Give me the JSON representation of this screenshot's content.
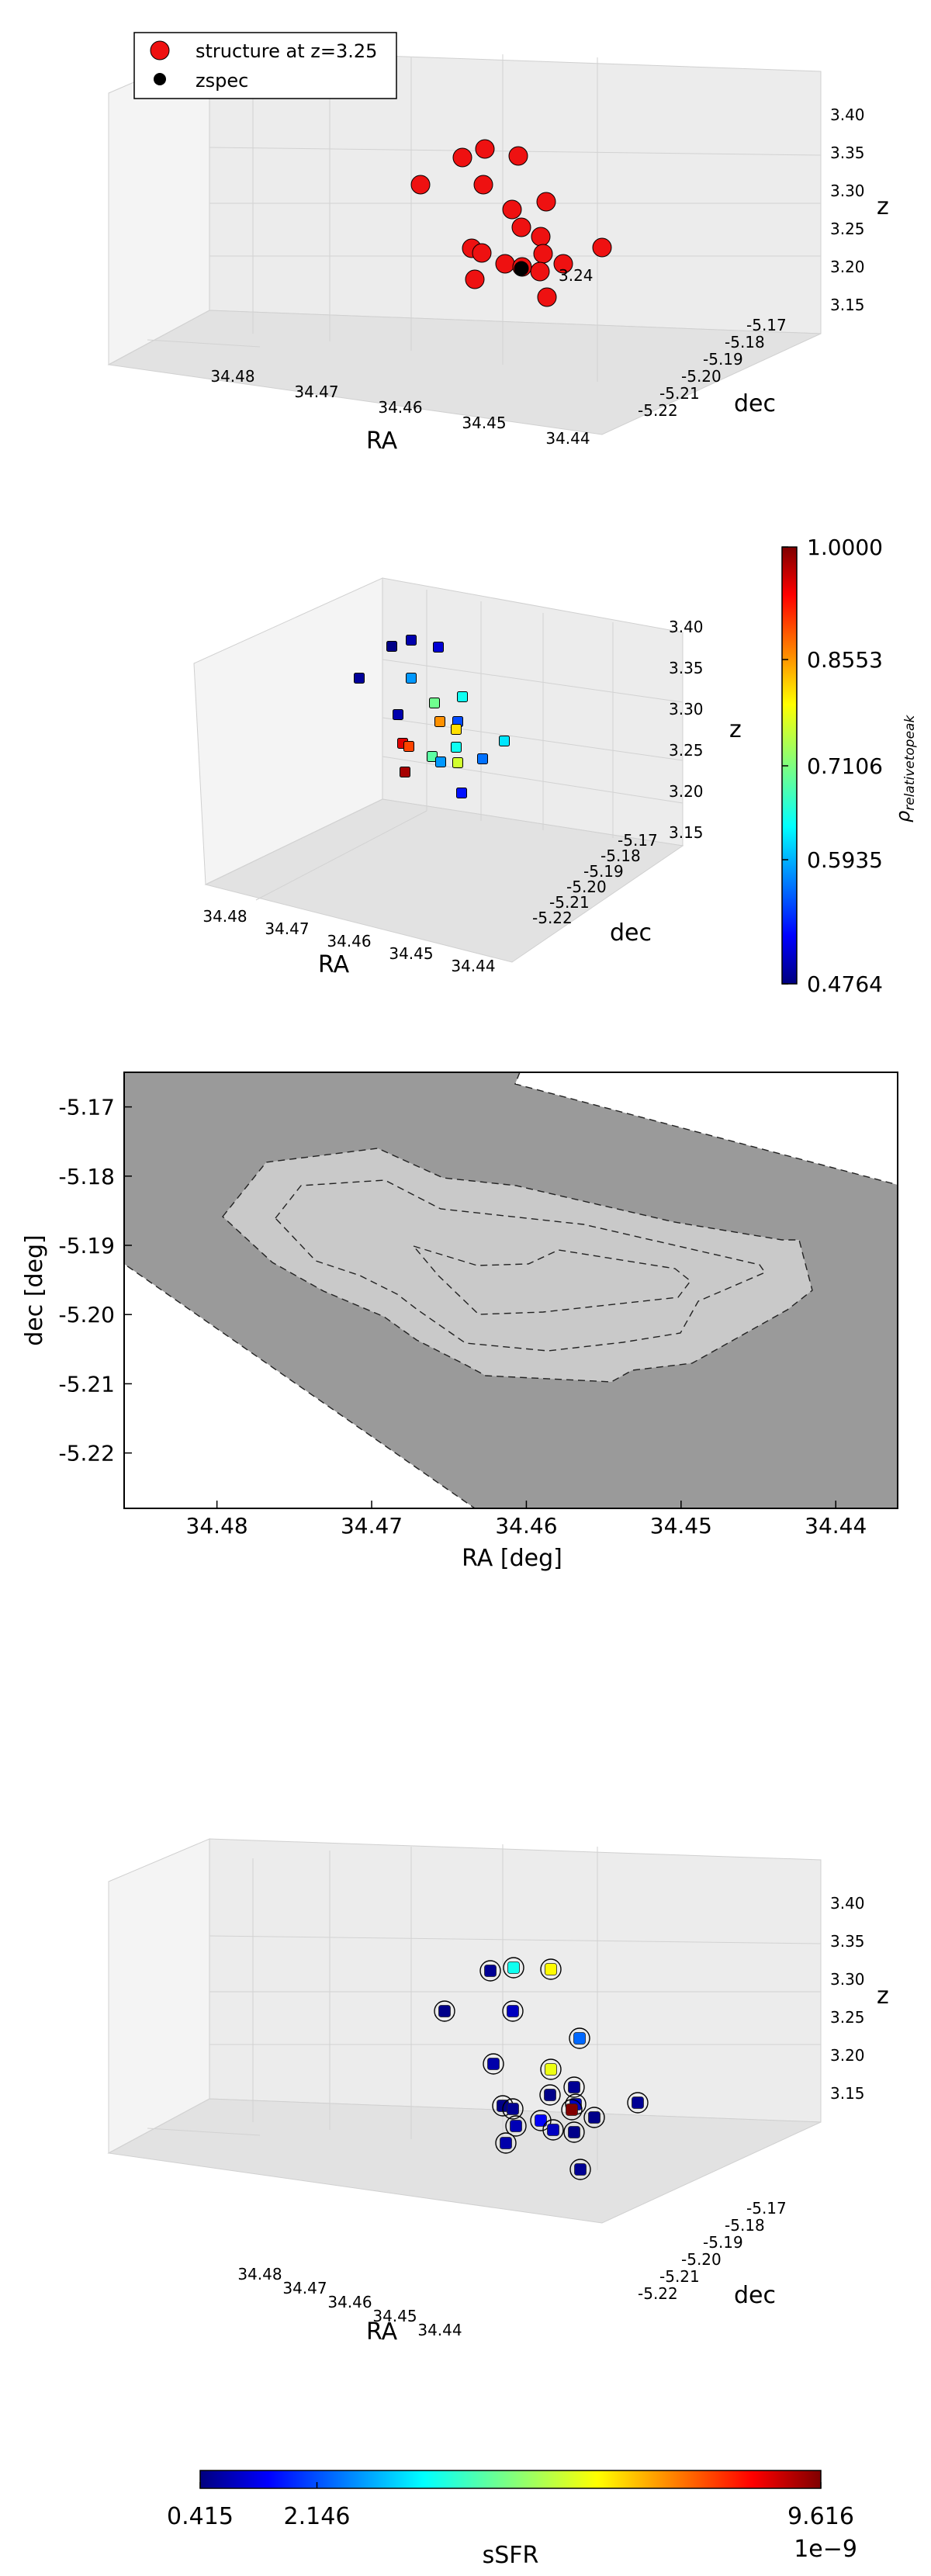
{
  "chart_data": [
    {
      "type": "scatter3d",
      "legend": [
        "structure at z=3.25",
        "zspec"
      ],
      "legend_position": "top-left",
      "xlabel": "RA",
      "ylabel": "dec",
      "zlabel": "z",
      "xticks": [
        "34.48",
        "34.47",
        "34.46",
        "34.45",
        "34.44"
      ],
      "yticks": [
        "-5.17",
        "-5.18",
        "-5.19",
        "-5.20",
        "-5.21",
        "-5.22"
      ],
      "zticks": [
        "3.40",
        "3.35",
        "3.30",
        "3.25",
        "3.20",
        "3.15"
      ],
      "annotation": "3.24",
      "colors": {
        "structure": "#ee1111",
        "zspec": "#000000"
      },
      "points_count": 20
    },
    {
      "type": "scatter3d",
      "xlabel": "RA",
      "ylabel": "dec",
      "zlabel": "z",
      "xticks": [
        "34.48",
        "34.47",
        "34.46",
        "34.45",
        "34.44"
      ],
      "yticks": [
        "-5.17",
        "-5.18",
        "-5.19",
        "-5.20",
        "-5.21",
        "-5.22"
      ],
      "zticks": [
        "3.40",
        "3.35",
        "3.30",
        "3.25",
        "3.20",
        "3.15"
      ],
      "colorbar": {
        "label": "ρ_relativetopeak",
        "ticks": [
          "1.0000",
          "0.8553",
          "0.7106",
          "0.5935",
          "0.4764"
        ],
        "range": [
          0.4764,
          1.0
        ],
        "colormap": "jet"
      },
      "values": [
        0.48,
        0.5,
        0.52,
        0.49,
        0.62,
        0.68,
        0.73,
        0.5,
        0.58,
        0.86,
        0.82,
        0.95,
        0.9,
        0.68,
        0.72,
        0.6,
        0.66,
        0.78,
        0.98,
        0.55,
        0.62
      ]
    },
    {
      "type": "contour",
      "xlabel": "RA [deg]",
      "ylabel": "dec [deg]",
      "xlim": [
        34.486,
        34.436
      ],
      "ylim": [
        -5.228,
        -5.165
      ],
      "xticks": [
        "34.48",
        "34.47",
        "34.46",
        "34.45",
        "34.44"
      ],
      "yticks": [
        "-5.17",
        "-5.18",
        "-5.19",
        "-5.20",
        "-5.21",
        "-5.22"
      ],
      "levels": 3,
      "colors": {
        "outer": "#9a9a9a",
        "inner": "#c9c9c9",
        "background": "#ffffff"
      }
    },
    {
      "type": "scatter3d",
      "xlabel": "RA",
      "ylabel": "dec",
      "zlabel": "z",
      "xticks": [
        "34.48",
        "34.47",
        "34.46",
        "34.45",
        "34.44"
      ],
      "yticks": [
        "-5.17",
        "-5.18",
        "-5.19",
        "-5.20",
        "-5.21",
        "-5.22"
      ],
      "zticks": [
        "3.40",
        "3.35",
        "3.30",
        "3.25",
        "3.20",
        "3.15"
      ],
      "colorbar": {
        "label": "sSFR",
        "ticks": [
          "0.415",
          "2.146",
          "9.616"
        ],
        "offset": "1e−9",
        "range": [
          0.415,
          9.616
        ],
        "colormap": "jet"
      },
      "values": [
        0.6,
        4.0,
        6.2,
        0.5,
        1.0,
        2.5,
        6.0,
        0.8,
        0.6,
        0.5,
        1.0,
        0.5,
        0.6,
        9.6,
        1.5,
        0.6,
        0.5,
        1.0,
        0.5,
        0.8,
        0.6,
        0.9
      ]
    }
  ]
}
